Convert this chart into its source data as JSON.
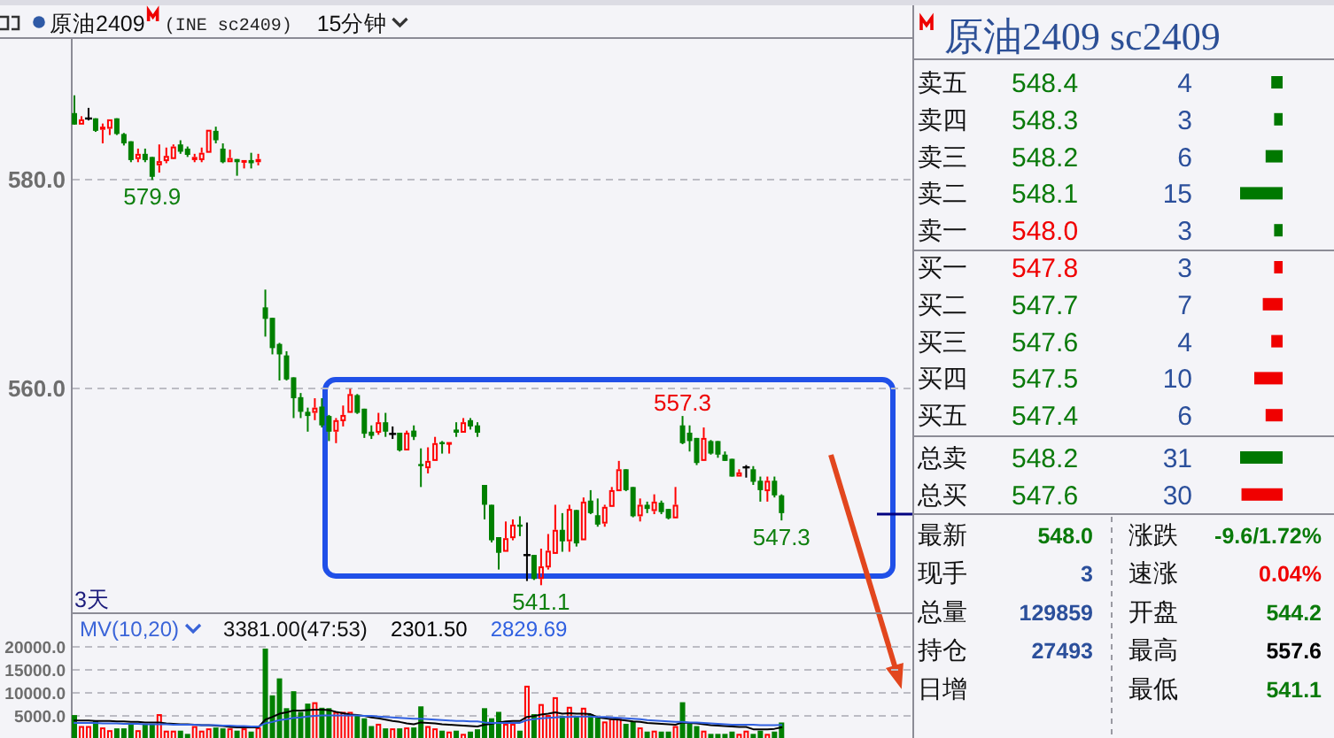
{
  "chart_data": [
    {
      "type": "candlestick",
      "title": "原油2409",
      "subtitle": "(INE sc2409)",
      "xlabel": "3天",
      "annotations": [
        "15分钟",
        {
          "text": "579.9",
          "y": 579.9
        },
        {
          "text": "557.3",
          "y": 557.3
        },
        {
          "text": "541.1",
          "y": 541.1
        },
        {
          "text": "547.3",
          "y": 547.3
        }
      ],
      "categories": [
        null,
        null,
        null,
        null,
        null,
        null,
        null,
        null,
        null,
        null,
        null,
        null,
        null,
        null,
        null,
        null,
        null,
        null,
        null,
        null,
        null,
        null,
        null,
        null,
        null,
        null,
        null,
        null,
        null,
        null,
        null,
        null,
        null,
        null,
        null,
        null,
        null,
        null,
        null,
        null,
        null,
        null,
        null,
        null,
        null,
        null,
        null,
        null,
        null,
        null,
        null,
        null,
        null,
        null,
        null,
        null,
        null,
        null,
        null,
        null,
        null,
        null,
        null,
        null,
        null,
        null,
        null,
        null,
        null,
        null,
        null,
        null,
        null,
        null,
        null,
        null,
        null,
        null,
        null,
        null,
        null,
        null,
        null,
        null,
        null,
        null,
        null,
        null,
        null,
        null,
        null,
        null,
        null,
        null,
        null,
        null,
        null,
        null,
        null,
        null,
        null,
        null,
        null,
        null,
        null,
        null,
        null,
        null,
        null,
        null,
        null,
        null,
        null,
        null,
        null,
        null,
        null,
        null,
        null
      ],
      "ohlc": [
        [
          586.3,
          588.0,
          585.2,
          585.2
        ],
        [
          585.2,
          586.0,
          585.2,
          585.7
        ],
        [
          585.8,
          586.8,
          585.6,
          585.8
        ],
        [
          585.8,
          585.8,
          584.5,
          584.6
        ],
        [
          584.7,
          585.3,
          583.4,
          585.0
        ],
        [
          584.8,
          585.8,
          584.2,
          585.7
        ],
        [
          585.8,
          585.8,
          584.2,
          584.3
        ],
        [
          584.3,
          584.4,
          583.2,
          583.4
        ],
        [
          583.6,
          583.6,
          581.6,
          581.8
        ],
        [
          581.9,
          582.9,
          581.6,
          582.4
        ],
        [
          582.4,
          582.9,
          581.6,
          581.8
        ],
        [
          582.1,
          582.1,
          579.9,
          580.2
        ],
        [
          581.3,
          583.3,
          580.6,
          581.7
        ],
        [
          581.7,
          583.0,
          581.5,
          582.2
        ],
        [
          581.9,
          583.3,
          581.8,
          583.1
        ],
        [
          583.3,
          583.7,
          582.4,
          582.6
        ],
        [
          582.9,
          583.1,
          582.1,
          582.3
        ],
        [
          581.8,
          582.4,
          581.6,
          582.1
        ],
        [
          581.8,
          583.0,
          581.6,
          582.5
        ],
        [
          582.5,
          584.8,
          582.4,
          584.7
        ],
        [
          584.6,
          585.0,
          583.4,
          583.7
        ],
        [
          582.9,
          583.4,
          581.5,
          581.6
        ],
        [
          581.6,
          582.8,
          581.5,
          582.0
        ],
        [
          581.9,
          581.9,
          580.3,
          581.6
        ],
        [
          581.6,
          581.8,
          581.0,
          581.8
        ],
        [
          581.8,
          582.5,
          581.0,
          581.5
        ],
        [
          581.6,
          582.4,
          581.3,
          581.9
        ],
        [
          567.7,
          569.4,
          564.9,
          566.6
        ],
        [
          566.7,
          566.7,
          563.2,
          563.8
        ],
        [
          564.2,
          564.3,
          560.7,
          563.2
        ],
        [
          563.1,
          563.5,
          560.7,
          560.8
        ],
        [
          561.0,
          561.0,
          557.1,
          559.0
        ],
        [
          559.1,
          559.5,
          557.1,
          557.7
        ],
        [
          557.7,
          558.1,
          555.8,
          557.3
        ],
        [
          557.6,
          559.0,
          556.9,
          558.1
        ],
        [
          558.2,
          559.0,
          556.2,
          556.4
        ],
        [
          557.3,
          557.4,
          554.9,
          555.8
        ],
        [
          555.8,
          557.1,
          554.7,
          556.9
        ],
        [
          556.8,
          558.3,
          556.3,
          557.4
        ],
        [
          557.6,
          559.9,
          557.5,
          559.4
        ],
        [
          559.3,
          559.4,
          557.5,
          557.6
        ],
        [
          558.0,
          558.0,
          555.2,
          555.6
        ],
        [
          555.8,
          556.4,
          555.1,
          555.4
        ],
        [
          555.7,
          557.6,
          555.5,
          556.7
        ],
        [
          556.7,
          557.6,
          555.3,
          555.8
        ],
        [
          555.6,
          556.3,
          555.1,
          555.6
        ],
        [
          555.7,
          555.7,
          553.9,
          554.0
        ],
        [
          554.0,
          555.9,
          553.9,
          555.7
        ],
        [
          555.9,
          556.4,
          555.0,
          555.3
        ],
        [
          552.7,
          554.2,
          550.5,
          552.5
        ],
        [
          552.3,
          554.3,
          551.8,
          553.0
        ],
        [
          553.0,
          555.3,
          552.9,
          554.7
        ],
        [
          554.8,
          554.9,
          553.7,
          554.6
        ],
        [
          554.6,
          554.9,
          553.7,
          554.8
        ],
        [
          556.0,
          556.7,
          555.3,
          555.7
        ],
        [
          555.7,
          557.1,
          555.6,
          556.7
        ],
        [
          556.9,
          557.1,
          556.0,
          556.3
        ],
        [
          556.4,
          556.7,
          555.3,
          555.7
        ],
        [
          550.7,
          550.7,
          547.4,
          548.8
        ],
        [
          548.8,
          548.8,
          545.2,
          545.4
        ],
        [
          545.7,
          545.7,
          542.6,
          544.2
        ],
        [
          544.3,
          547.2,
          544.3,
          545.6
        ],
        [
          545.6,
          547.4,
          545.4,
          546.9
        ],
        [
          546.9,
          547.7,
          545.8,
          546.7
        ],
        [
          544.0,
          547.1,
          541.5,
          544.0
        ],
        [
          544.0,
          544.0,
          541.6,
          541.7
        ],
        [
          541.7,
          544.6,
          541.1,
          542.9
        ],
        [
          542.8,
          546.0,
          542.6,
          544.4
        ],
        [
          544.1,
          548.8,
          544.0,
          546.4
        ],
        [
          546.4,
          548.0,
          544.3,
          545.3
        ],
        [
          545.3,
          548.8,
          544.3,
          548.4
        ],
        [
          548.3,
          548.3,
          544.8,
          545.1
        ],
        [
          545.4,
          549.5,
          545.3,
          549.1
        ],
        [
          549.2,
          550.2,
          547.9,
          548.0
        ],
        [
          547.8,
          549.4,
          546.7,
          546.9
        ],
        [
          547.0,
          548.8,
          546.7,
          548.6
        ],
        [
          548.6,
          550.5,
          548.6,
          550.2
        ],
        [
          550.1,
          553.0,
          550.0,
          552.2
        ],
        [
          552.2,
          552.2,
          550.1,
          550.2
        ],
        [
          550.5,
          550.5,
          547.6,
          547.7
        ],
        [
          547.7,
          549.4,
          547.2,
          548.8
        ],
        [
          548.8,
          549.1,
          548.0,
          548.4
        ],
        [
          548.2,
          549.8,
          547.9,
          549.1
        ],
        [
          549.0,
          549.2,
          547.9,
          548.1
        ],
        [
          548.4,
          548.4,
          547.4,
          547.5
        ],
        [
          547.5,
          550.5,
          547.4,
          548.8
        ],
        [
          556.4,
          557.3,
          554.6,
          554.7
        ],
        [
          555.7,
          556.4,
          553.9,
          554.9
        ],
        [
          555.2,
          555.2,
          552.6,
          552.8
        ],
        [
          553.0,
          556.2,
          552.9,
          555.2
        ],
        [
          554.9,
          555.0,
          553.6,
          553.7
        ],
        [
          554.9,
          554.9,
          553.3,
          553.6
        ],
        [
          553.6,
          553.9,
          553.0,
          553.0
        ],
        [
          553.2,
          553.2,
          551.5,
          551.5
        ],
        [
          551.5,
          552.2,
          551.5,
          551.9
        ],
        [
          552.4,
          552.6,
          551.4,
          552.4
        ],
        [
          552.2,
          552.5,
          550.7,
          551.0
        ],
        [
          551.1,
          551.5,
          549.1,
          550.2
        ],
        [
          550.1,
          551.5,
          549.1,
          551.1
        ],
        [
          551.1,
          551.5,
          549.5,
          549.7
        ],
        [
          549.7,
          549.8,
          547.3,
          548.0
        ],
        null,
        null,
        null,
        null,
        null,
        null,
        null,
        null,
        null,
        null,
        null,
        null,
        null,
        null,
        null,
        null,
        null,
        null
      ],
      "colors": [
        "#008000",
        "#ff0000",
        "#000000",
        "#008000",
        "#ff0000",
        "#ff0000",
        "#008000",
        "#008000",
        "#008000",
        "#ff0000",
        "#008000",
        "#008000",
        "#ff0000",
        "#ff0000",
        "#ff0000",
        "#008000",
        "#008000",
        "#ff0000",
        "#ff0000",
        "#ff0000",
        "#008000",
        "#008000",
        "#ff0000",
        "#008000",
        "#ff0000",
        "#008000",
        "#ff0000",
        "#008000",
        "#008000",
        "#008000",
        "#008000",
        "#008000",
        "#008000",
        "#008000",
        "#ff0000",
        "#008000",
        "#008000",
        "#ff0000",
        "#ff0000",
        "#ff0000",
        "#008000",
        "#008000",
        "#008000",
        "#ff0000",
        "#008000",
        "#000000",
        "#008000",
        "#ff0000",
        "#008000",
        "#008000",
        "#ff0000",
        "#ff0000",
        "#008000",
        "#ff0000",
        "#008000",
        "#ff0000",
        "#008000",
        "#008000",
        "#008000",
        "#008000",
        "#008000",
        "#ff0000",
        "#ff0000",
        "#008000",
        "#000000",
        "#008000",
        "#ff0000",
        "#ff0000",
        "#ff0000",
        "#008000",
        "#ff0000",
        "#008000",
        "#ff0000",
        "#008000",
        "#008000",
        "#ff0000",
        "#ff0000",
        "#ff0000",
        "#008000",
        "#008000",
        "#ff0000",
        "#008000",
        "#ff0000",
        "#008000",
        "#008000",
        "#ff0000",
        "#008000",
        "#008000",
        "#008000",
        "#ff0000",
        "#008000",
        "#008000",
        "#008000",
        "#008000",
        "#ff0000",
        "#000000",
        "#008000",
        "#008000",
        "#ff0000",
        "#008000",
        "#008000",
        null,
        null,
        null,
        null,
        null,
        null,
        null,
        null,
        null,
        null,
        null,
        null,
        null,
        null,
        null,
        null,
        null,
        null
      ],
      "ylim": [
        538.5,
        593.4
      ],
      "yticks": [
        {
          "value": 560,
          "label": "560.0"
        },
        {
          "value": 580,
          "label": "580.0"
        }
      ],
      "grid": "y"
    },
    {
      "type": "bar",
      "legend": "top left",
      "legend_title": "MV(10,20)",
      "annotations": [
        "3381.00(47:53)"
      ],
      "categories": [
        null,
        null,
        null,
        null,
        null,
        null,
        null,
        null,
        null,
        null,
        null,
        null,
        null,
        null,
        null,
        null,
        null,
        null,
        null,
        null,
        null,
        null,
        null,
        null,
        null,
        null,
        null,
        null,
        null,
        null,
        null,
        null,
        null,
        null,
        null,
        null,
        null,
        null,
        null,
        null,
        null,
        null,
        null,
        null,
        null,
        null,
        null,
        null,
        null,
        null,
        null,
        null,
        null,
        null,
        null,
        null,
        null,
        null,
        null,
        null,
        null,
        null,
        null,
        null,
        null,
        null,
        null,
        null,
        null,
        null,
        null,
        null,
        null,
        null,
        null,
        null,
        null,
        null,
        null,
        null,
        null,
        null,
        null,
        null,
        null,
        null,
        null,
        null,
        null,
        null,
        null,
        null,
        null,
        null,
        null,
        null,
        null,
        null,
        null,
        null,
        null,
        null,
        null,
        null,
        null,
        null,
        null,
        null,
        null,
        null,
        null,
        null,
        null,
        null,
        null,
        null,
        null,
        null,
        null
      ],
      "series": [
        {
          "type": "bar",
          "colors": [
            "#008000",
            "#ff0000",
            "#ff0000",
            "#008000",
            "#ff0000",
            "#ff0000",
            "#008000",
            "#008000",
            "#008000",
            "#ff0000",
            "#008000",
            "#008000",
            "#ff0000",
            "#ff0000",
            "#ff0000",
            "#008000",
            "#008000",
            "#ff0000",
            "#ff0000",
            "#ff0000",
            "#008000",
            "#008000",
            "#ff0000",
            "#008000",
            "#ff0000",
            "#008000",
            "#ff0000",
            "#008000",
            "#008000",
            "#008000",
            "#008000",
            "#008000",
            "#008000",
            "#008000",
            "#ff0000",
            "#008000",
            "#008000",
            "#ff0000",
            "#ff0000",
            "#ff0000",
            "#008000",
            "#008000",
            "#008000",
            "#ff0000",
            "#008000",
            "#ff0000",
            "#008000",
            "#ff0000",
            "#008000",
            "#008000",
            "#ff0000",
            "#ff0000",
            "#008000",
            "#ff0000",
            "#008000",
            "#ff0000",
            "#008000",
            "#008000",
            "#008000",
            "#008000",
            "#008000",
            "#ff0000",
            "#ff0000",
            "#008000",
            "#ff0000",
            "#008000",
            "#ff0000",
            "#ff0000",
            "#ff0000",
            "#008000",
            "#ff0000",
            "#008000",
            "#ff0000",
            "#008000",
            "#008000",
            "#ff0000",
            "#ff0000",
            "#ff0000",
            "#008000",
            "#008000",
            "#ff0000",
            "#008000",
            "#ff0000",
            "#008000",
            "#008000",
            "#ff0000",
            "#008000",
            "#008000",
            "#008000",
            "#ff0000",
            "#008000",
            "#008000",
            "#008000",
            "#008000",
            "#ff0000",
            "#ff0000",
            "#008000",
            "#008000",
            "#ff0000",
            "#008000",
            "#008000",
            null,
            null,
            null,
            null,
            null,
            null,
            null,
            null,
            null,
            null,
            null,
            null,
            null,
            null,
            null,
            null,
            null,
            null
          ],
          "values": [
            5000,
            2600,
            2600,
            3800,
            2300,
            1700,
            2100,
            2100,
            3100,
            1700,
            3100,
            3100,
            5200,
            1600,
            1600,
            1600,
            900,
            2600,
            1600,
            2100,
            2300,
            2100,
            2100,
            1600,
            2100,
            1400,
            2300,
            19500,
            9300,
            13000,
            6500,
            10200,
            5700,
            7500,
            7800,
            6600,
            6500,
            5700,
            5700,
            5700,
            5000,
            4300,
            2600,
            3100,
            2100,
            2100,
            2100,
            2300,
            2300,
            6900,
            2600,
            2100,
            1600,
            1400,
            1600,
            900,
            1400,
            1900,
            6500,
            4300,
            5700,
            3100,
            3100,
            1600,
            11400,
            5200,
            7400,
            5000,
            8900,
            4800,
            6800,
            4800,
            6600,
            5200,
            4500,
            3600,
            4300,
            4300,
            3100,
            3600,
            2300,
            1400,
            1600,
            1400,
            1400,
            2600,
            7800,
            3100,
            2600,
            1600,
            900,
            900,
            900,
            1400,
            900,
            1600,
            900,
            1600,
            900,
            1400,
            3381,
            null,
            null,
            null,
            null,
            null,
            null,
            null,
            null,
            null,
            null,
            null,
            null,
            null,
            null,
            null,
            null,
            null,
            null
          ]
        },
        {
          "type": "line",
          "name": "2301.50",
          "color": "#000000",
          "values": [
            3800,
            3800,
            3800,
            3700,
            3700,
            3700,
            3600,
            3600,
            3500,
            3500,
            3400,
            3400,
            3400,
            3200,
            3100,
            3000,
            3000,
            2900,
            2800,
            2800,
            2700,
            2600,
            2400,
            2300,
            2300,
            2300,
            2300,
            4000,
            4600,
            5300,
            5600,
            6000,
            6000,
            6100,
            6200,
            6200,
            6100,
            5700,
            5400,
            5100,
            5000,
            4800,
            4500,
            4300,
            4000,
            3700,
            3500,
            3200,
            3000,
            3400,
            3300,
            3200,
            3000,
            2900,
            2800,
            2700,
            2600,
            2500,
            2900,
            3100,
            3400,
            3600,
            3700,
            3700,
            4600,
            4800,
            5100,
            5300,
            5600,
            5300,
            5400,
            5300,
            5300,
            5200,
            4500,
            4300,
            4100,
            4000,
            3800,
            3600,
            3500,
            3300,
            3200,
            3100,
            3000,
            2900,
            3400,
            3300,
            3200,
            3000,
            2800,
            2700,
            2600,
            2500,
            2400,
            2400,
            1900,
            1900,
            1900,
            2000,
            2301.5,
            null,
            null,
            null,
            null,
            null,
            null,
            null,
            null,
            null,
            null,
            null,
            null,
            null,
            null,
            null,
            null,
            null,
            null
          ]
        },
        {
          "type": "line",
          "name": "2829.69",
          "color": "#3060e0",
          "values": [
            3300,
            3300,
            3300,
            3300,
            3200,
            3200,
            3200,
            3100,
            3100,
            3100,
            3000,
            3000,
            3000,
            3000,
            2900,
            2900,
            2900,
            2900,
            2800,
            2800,
            2800,
            2700,
            2700,
            2600,
            2600,
            2500,
            2500,
            3200,
            3500,
            3900,
            4100,
            4400,
            4500,
            4700,
            4800,
            4900,
            4900,
            4900,
            4900,
            4900,
            4900,
            4800,
            4800,
            4700,
            4600,
            4500,
            4400,
            4300,
            4200,
            4200,
            4100,
            4000,
            3900,
            3800,
            3700,
            3700,
            3600,
            3600,
            3400,
            3300,
            3300,
            3300,
            3300,
            3300,
            3900,
            4100,
            4300,
            4400,
            4500,
            4600,
            4600,
            4700,
            4700,
            4700,
            4600,
            4600,
            4500,
            4400,
            4300,
            4200,
            4100,
            3900,
            3800,
            3700,
            3600,
            3500,
            3500,
            3400,
            3400,
            3300,
            3200,
            3100,
            3000,
            2900,
            2900,
            2900,
            2900,
            2800,
            2800,
            2800,
            2829.69,
            null,
            null,
            null,
            null,
            null,
            null,
            null,
            null,
            null,
            null,
            null,
            null,
            null,
            null,
            null,
            null,
            null,
            null
          ]
        }
      ],
      "ylim": [
        0,
        22000
      ],
      "yticks": [
        {
          "value": 5000,
          "label": "5000.0"
        },
        {
          "value": 10000,
          "label": "10000.0"
        },
        {
          "value": 15000,
          "label": "15000.0"
        },
        {
          "value": 20000,
          "label": "20000.0"
        }
      ],
      "grid": "y"
    },
    {
      "type": "bar",
      "orientation": "horizontal",
      "title": "原油2409 sc2409",
      "categories": [
        "卖五",
        "卖四",
        "卖三",
        "卖二",
        "卖一",
        "买一",
        "买二",
        "买三",
        "买四",
        "买五"
      ],
      "y2_categories": [
        "548.4",
        "548.3",
        "548.2",
        "548.1",
        "548.0",
        "547.8",
        "547.7",
        "547.6",
        "547.5",
        "547.4"
      ],
      "values": [
        4,
        3,
        6,
        15,
        3,
        3,
        7,
        4,
        10,
        6
      ],
      "colors": [
        "#007800",
        "#007800",
        "#007800",
        "#007800",
        "#007800",
        "#f00000",
        "#f00000",
        "#f00000",
        "#f00000",
        "#f00000"
      ],
      "data_labels": true
    },
    {
      "type": "bar",
      "orientation": "horizontal",
      "categories": [
        "总卖",
        "总买"
      ],
      "y2_categories": [
        "548.2",
        "547.6"
      ],
      "values": [
        31,
        30
      ],
      "colors": [
        "#007800",
        "#f00000"
      ],
      "data_labels": true
    },
    {
      "type": "other",
      "categories": [
        "最新",
        "现手",
        "总量",
        "持仓",
        "日增",
        "涨跌",
        "速涨",
        "开盘",
        "最高",
        "最低"
      ],
      "value_labels": [
        "548.0",
        "3",
        "129859",
        "27493",
        null,
        "-9.6/1.72%",
        "0.04%",
        "544.2",
        "557.6",
        "541.1"
      ],
      "colors": [
        "#0a7a0a",
        "#2b4f9b",
        "#2b4f9b",
        "#2b4f9b",
        "#2b4f9b",
        "#0a7a0a",
        "#f00000",
        "#0a7a0a",
        "#000000",
        "#0a7a0a"
      ]
    }
  ]
}
